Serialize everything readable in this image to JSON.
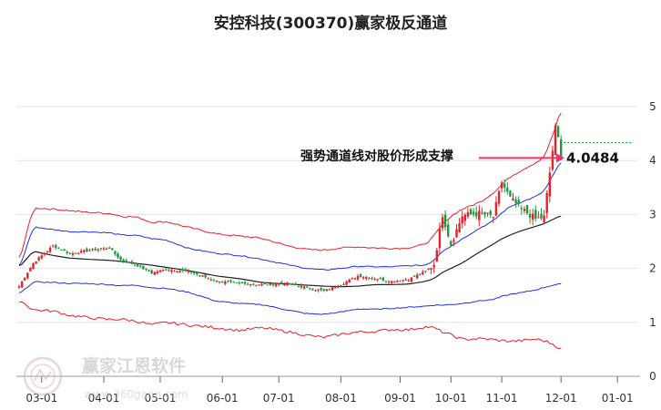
{
  "chart_data": {
    "type": "candlestick",
    "title": "安控科技(300370)赢家极反通道",
    "x_tick_labels": [
      "03-01",
      "04-01",
      "05-01",
      "06-01",
      "07-01",
      "08-01",
      "09-01",
      "10-01",
      "11-01",
      "12-01",
      "01-01"
    ],
    "y_tick_labels": [
      "0",
      "1",
      "2",
      "3",
      "4",
      "5"
    ],
    "ylim": [
      0,
      5
    ],
    "grid": true,
    "annotation": {
      "text": "强势通道线对股价形成支撑",
      "value_label": "4.0484",
      "value": 4.0484
    },
    "watermark": {
      "name": "赢家江恩软件",
      "url": "www.360gann.com"
    },
    "colors": {
      "up": "#e8202a",
      "down": "#1a9a3a",
      "upper_band": "#e8202a",
      "middle_band": "#2030e0",
      "mid_line": "#222222",
      "arrow": "#ff2a6a",
      "last_price_line": "#1a9a3a",
      "grid": "#e2e2e2"
    },
    "anchors": [
      {
        "i": 0,
        "c": 1.67,
        "ma": 2.02,
        "ub": 2.12,
        "mb": 1.98,
        "lb": 1.52,
        "ll": 1.42
      },
      {
        "i": 5,
        "c": 2.1,
        "ma": 2.32,
        "ub": 3.12,
        "mb": 2.77,
        "lb": 1.75,
        "ll": 1.23
      },
      {
        "i": 12,
        "c": 2.42,
        "ma": 2.24,
        "ub": 3.1,
        "mb": 2.72,
        "lb": 1.74,
        "ll": 1.21
      },
      {
        "i": 18,
        "c": 2.27,
        "ma": 2.19,
        "ub": 3.07,
        "mb": 2.68,
        "lb": 1.72,
        "ll": 1.13
      },
      {
        "i": 24,
        "c": 2.33,
        "ma": 2.17,
        "ub": 3.04,
        "mb": 2.68,
        "lb": 1.72,
        "ll": 1.09
      },
      {
        "i": 32,
        "c": 2.38,
        "ma": 2.15,
        "ub": 3.02,
        "mb": 2.66,
        "lb": 1.7,
        "ll": 1.05
      },
      {
        "i": 36,
        "c": 2.16,
        "ma": 2.13,
        "ub": 2.97,
        "mb": 2.62,
        "lb": 1.68,
        "ll": 1.06
      },
      {
        "i": 42,
        "c": 2.05,
        "ma": 2.09,
        "ub": 2.95,
        "mb": 2.61,
        "lb": 1.69,
        "ll": 1.02
      },
      {
        "i": 47,
        "c": 1.92,
        "ma": 2.06,
        "ub": 2.85,
        "mb": 2.55,
        "lb": 1.64,
        "ll": 0.95
      },
      {
        "i": 52,
        "c": 1.98,
        "ma": 2.02,
        "ub": 2.87,
        "mb": 2.53,
        "lb": 1.63,
        "ll": 1.0
      },
      {
        "i": 60,
        "c": 1.95,
        "ma": 1.96,
        "ub": 2.76,
        "mb": 2.37,
        "lb": 1.56,
        "ll": 0.95
      },
      {
        "i": 70,
        "c": 1.76,
        "ma": 1.86,
        "ub": 2.64,
        "mb": 2.28,
        "lb": 1.39,
        "ll": 0.9
      },
      {
        "i": 78,
        "c": 1.72,
        "ma": 1.81,
        "ub": 2.6,
        "mb": 2.24,
        "lb": 1.35,
        "ll": 0.85
      },
      {
        "i": 86,
        "c": 1.7,
        "ma": 1.74,
        "ub": 2.56,
        "mb": 2.17,
        "lb": 1.33,
        "ll": 0.9
      },
      {
        "i": 95,
        "c": 1.72,
        "ma": 1.71,
        "ub": 2.42,
        "mb": 2.07,
        "lb": 1.23,
        "ll": 0.83
      },
      {
        "i": 102,
        "c": 1.64,
        "ma": 1.69,
        "ub": 2.35,
        "mb": 2.0,
        "lb": 1.16,
        "ll": 0.76
      },
      {
        "i": 108,
        "c": 1.58,
        "ma": 1.67,
        "ub": 2.34,
        "mb": 1.97,
        "lb": 1.15,
        "ll": 0.72
      },
      {
        "i": 114,
        "c": 1.7,
        "ma": 1.66,
        "ub": 2.38,
        "mb": 2.0,
        "lb": 1.19,
        "ll": 0.78
      },
      {
        "i": 120,
        "c": 1.86,
        "ma": 1.67,
        "ub": 2.4,
        "mb": 2.04,
        "lb": 1.25,
        "ll": 0.82
      },
      {
        "i": 126,
        "c": 1.82,
        "ma": 1.7,
        "ub": 2.38,
        "mb": 2.03,
        "lb": 1.24,
        "ll": 0.83
      },
      {
        "i": 132,
        "c": 1.76,
        "ma": 1.7,
        "ub": 2.37,
        "mb": 2.03,
        "lb": 1.26,
        "ll": 0.87
      },
      {
        "i": 138,
        "c": 1.8,
        "ma": 1.71,
        "ub": 2.38,
        "mb": 2.05,
        "lb": 1.28,
        "ll": 0.86
      },
      {
        "i": 144,
        "c": 1.94,
        "ma": 1.76,
        "ub": 2.45,
        "mb": 2.06,
        "lb": 1.3,
        "ll": 0.92
      },
      {
        "i": 147,
        "c": 2.08,
        "ma": 1.81,
        "ub": 2.6,
        "mb": 2.15,
        "lb": 1.32,
        "ll": 0.9
      },
      {
        "i": 150,
        "c": 3.0,
        "ma": 1.93,
        "ub": 2.82,
        "mb": 2.33,
        "lb": 1.32,
        "ll": 0.82
      },
      {
        "i": 153,
        "c": 2.45,
        "ma": 2.0,
        "ub": 2.97,
        "mb": 2.41,
        "lb": 1.33,
        "ll": 0.77
      },
      {
        "i": 157,
        "c": 2.98,
        "ma": 2.1,
        "ub": 3.1,
        "mb": 2.55,
        "lb": 1.35,
        "ll": 0.68
      },
      {
        "i": 163,
        "c": 3.02,
        "ma": 2.3,
        "ub": 3.22,
        "mb": 2.74,
        "lb": 1.4,
        "ll": 0.7
      },
      {
        "i": 168,
        "c": 2.96,
        "ma": 2.45,
        "ub": 3.4,
        "mb": 2.88,
        "lb": 1.42,
        "ll": 0.68
      },
      {
        "i": 171,
        "c": 3.6,
        "ma": 2.55,
        "ub": 3.55,
        "mb": 3.03,
        "lb": 1.48,
        "ll": 0.66
      },
      {
        "i": 174,
        "c": 3.3,
        "ma": 2.62,
        "ub": 3.7,
        "mb": 3.15,
        "lb": 1.52,
        "ll": 0.65
      },
      {
        "i": 178,
        "c": 3.1,
        "ma": 2.7,
        "ub": 3.82,
        "mb": 3.23,
        "lb": 1.55,
        "ll": 0.66
      },
      {
        "i": 183,
        "c": 2.92,
        "ma": 2.78,
        "ub": 3.96,
        "mb": 3.33,
        "lb": 1.6,
        "ll": 0.69
      },
      {
        "i": 186,
        "c": 2.95,
        "ma": 2.83,
        "ub": 4.05,
        "mb": 3.43,
        "lb": 1.65,
        "ll": 0.66
      },
      {
        "i": 190,
        "c": 4.6,
        "ma": 2.93,
        "ub": 4.6,
        "mb": 3.8,
        "lb": 1.7,
        "ll": 0.58
      },
      {
        "i": 192,
        "c": 4.22,
        "ma": 2.98,
        "ub": 4.97,
        "mb": 4.0,
        "lb": 1.71,
        "ll": 0.48
      }
    ]
  }
}
